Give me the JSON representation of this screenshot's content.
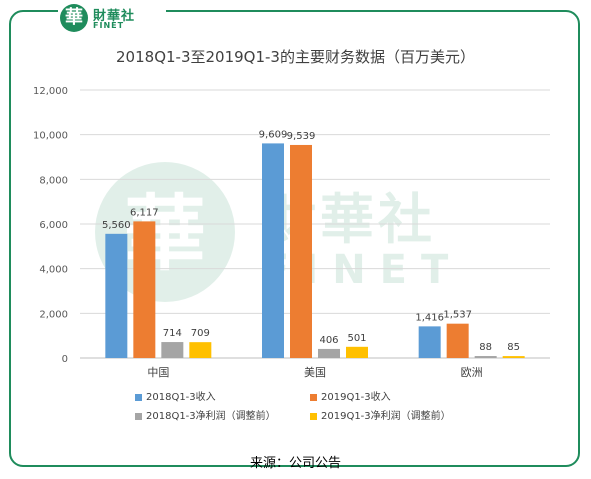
{
  "brand": {
    "badge_char": "華",
    "name_cn": "財華社",
    "name_en": "FINET"
  },
  "watermark": {
    "badge_char": "華",
    "name_cn": "財華社",
    "name_en": "FINET"
  },
  "footer": {
    "source": "来源：公司公告"
  },
  "chart_data": {
    "type": "bar",
    "title": "2018Q1-3至2019Q1-3的主要财务数据（百万美元）",
    "categories": [
      "中国",
      "美国",
      "欧洲"
    ],
    "series": [
      {
        "name": "2018Q1-3收入",
        "color": "#5b9bd5",
        "values": [
          5560,
          9609,
          1416
        ],
        "labels": [
          "5,560",
          "9,609",
          "1,416"
        ]
      },
      {
        "name": "2019Q1-3收入",
        "color": "#ed7d31",
        "values": [
          6117,
          9539,
          1537
        ],
        "labels": [
          "6,117",
          "9,539",
          "1,537"
        ]
      },
      {
        "name": "2018Q1-3净利润（调整前）",
        "color": "#a5a5a5",
        "values": [
          714,
          406,
          88
        ],
        "labels": [
          "714",
          "406",
          "88"
        ]
      },
      {
        "name": "2019Q1-3净利润（调整前）",
        "color": "#ffc000",
        "values": [
          709,
          501,
          85
        ],
        "labels": [
          "709",
          "501",
          "85"
        ]
      }
    ],
    "ylim": [
      0,
      12000
    ],
    "yticks": [
      0,
      2000,
      4000,
      6000,
      8000,
      10000,
      12000
    ],
    "ytick_labels": [
      "0",
      "2,000",
      "4,000",
      "6,000",
      "8,000",
      "10,000",
      "12,000"
    ],
    "grid": true,
    "legend": "bottom",
    "xlabel": "",
    "ylabel": ""
  }
}
